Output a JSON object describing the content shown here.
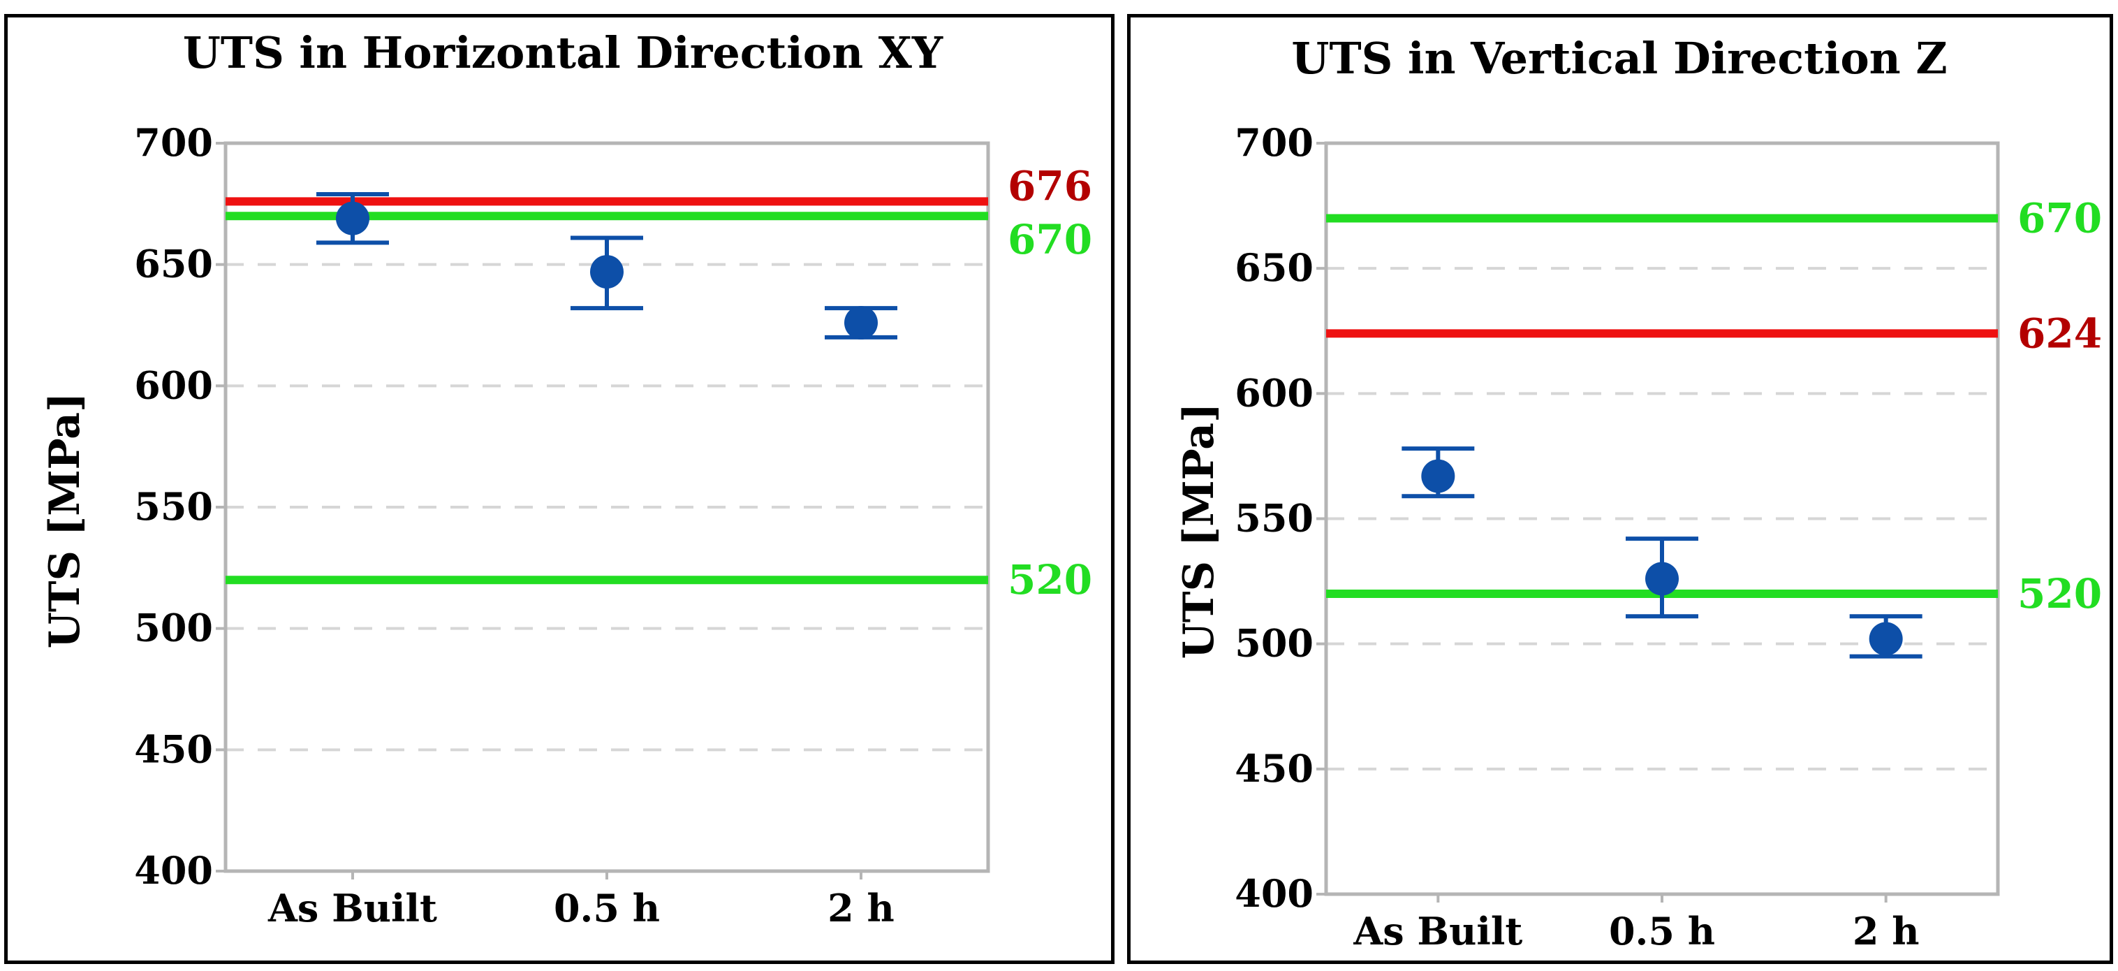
{
  "colors": {
    "marker": "#0d4fa8",
    "limit_red": "#ee1111",
    "limit_green": "#22dd22",
    "label_red": "#b30000",
    "label_green": "#22dd22",
    "grid": "#d6d6d6",
    "frame": "#b5b5b5"
  },
  "chart_data": [
    {
      "type": "scatter",
      "title": "UTS in Horizontal Direction XY",
      "xlabel": "",
      "ylabel": "UTS [MPa]",
      "categories": [
        "As Built",
        "0.5 h",
        "2 h"
      ],
      "series": [
        {
          "values": [
            669,
            647,
            626
          ],
          "error_low": [
            659,
            632,
            620
          ],
          "error_high": [
            679,
            661,
            632
          ]
        }
      ],
      "reference_lines": [
        {
          "value": 676,
          "label": "676",
          "color": "red"
        },
        {
          "value": 670,
          "label": "670",
          "color": "green"
        },
        {
          "value": 520,
          "label": "520",
          "color": "green"
        }
      ],
      "ylim": [
        400,
        700
      ],
      "yticks": [
        400,
        450,
        500,
        550,
        600,
        650,
        700
      ],
      "grid": "horizontal dashed",
      "legend": "none"
    },
    {
      "type": "scatter",
      "title": "UTS in Vertical Direction Z",
      "xlabel": "",
      "ylabel": "UTS [MPa]",
      "categories": [
        "As Built",
        "0.5 h",
        "2 h"
      ],
      "series": [
        {
          "values": [
            567,
            526,
            502
          ],
          "error_low": [
            559,
            511,
            495
          ],
          "error_high": [
            578,
            542,
            511
          ]
        }
      ],
      "reference_lines": [
        {
          "value": 670,
          "label": "670",
          "color": "green"
        },
        {
          "value": 624,
          "label": "624",
          "color": "red"
        },
        {
          "value": 520,
          "label": "520",
          "color": "green"
        }
      ],
      "ylim": [
        400,
        700
      ],
      "yticks": [
        400,
        450,
        500,
        550,
        600,
        650,
        700
      ],
      "grid": "horizontal dashed",
      "legend": "none"
    }
  ]
}
